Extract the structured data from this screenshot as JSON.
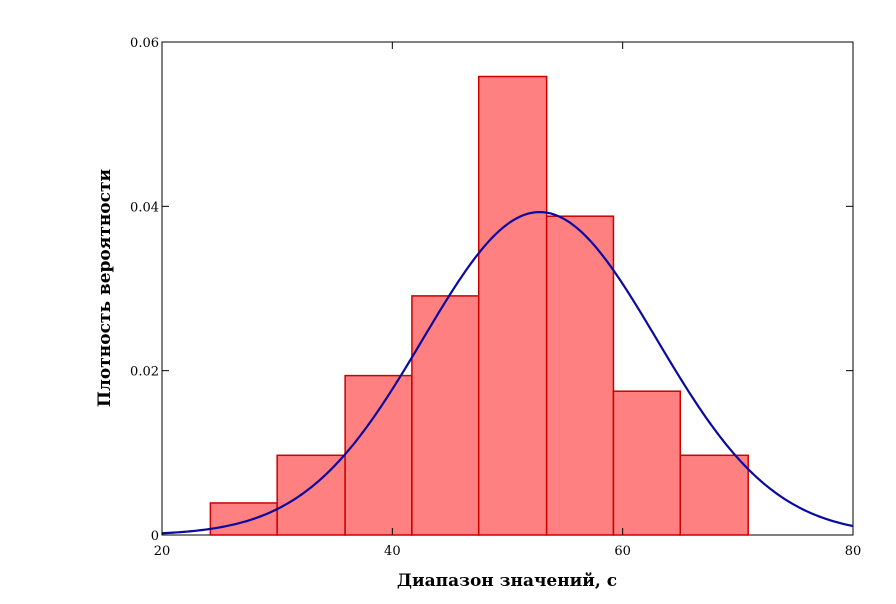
{
  "chart_data": {
    "type": "bar",
    "title": "",
    "xlabel": "Диапазон значений, с",
    "ylabel": "Плотность вероятности",
    "xlim": [
      20,
      80
    ],
    "ylim": [
      0,
      0.06
    ],
    "xticks": [
      20,
      40,
      60,
      80
    ],
    "yticks": [
      0,
      0.02,
      0.04,
      0.06
    ],
    "ytick_labels": [
      "0",
      "0.02",
      "0.04",
      "0.06"
    ],
    "xtick_labels": [
      "20",
      "40",
      "60",
      "80"
    ],
    "grid": false,
    "histogram": {
      "bin_edges": [
        24.2,
        30.0,
        35.9,
        41.7,
        47.5,
        53.4,
        59.2,
        65.0,
        70.9
      ],
      "values": [
        0.0039,
        0.0097,
        0.0194,
        0.0291,
        0.0558,
        0.0388,
        0.0175,
        0.0097
      ],
      "fill_color": "#ff8080",
      "edge_color": "#cc0000"
    },
    "curve": {
      "type": "normal-density",
      "mean": 52.8,
      "std": 10.15,
      "x_range": [
        20,
        80
      ],
      "color": "#0a0a9e"
    }
  }
}
